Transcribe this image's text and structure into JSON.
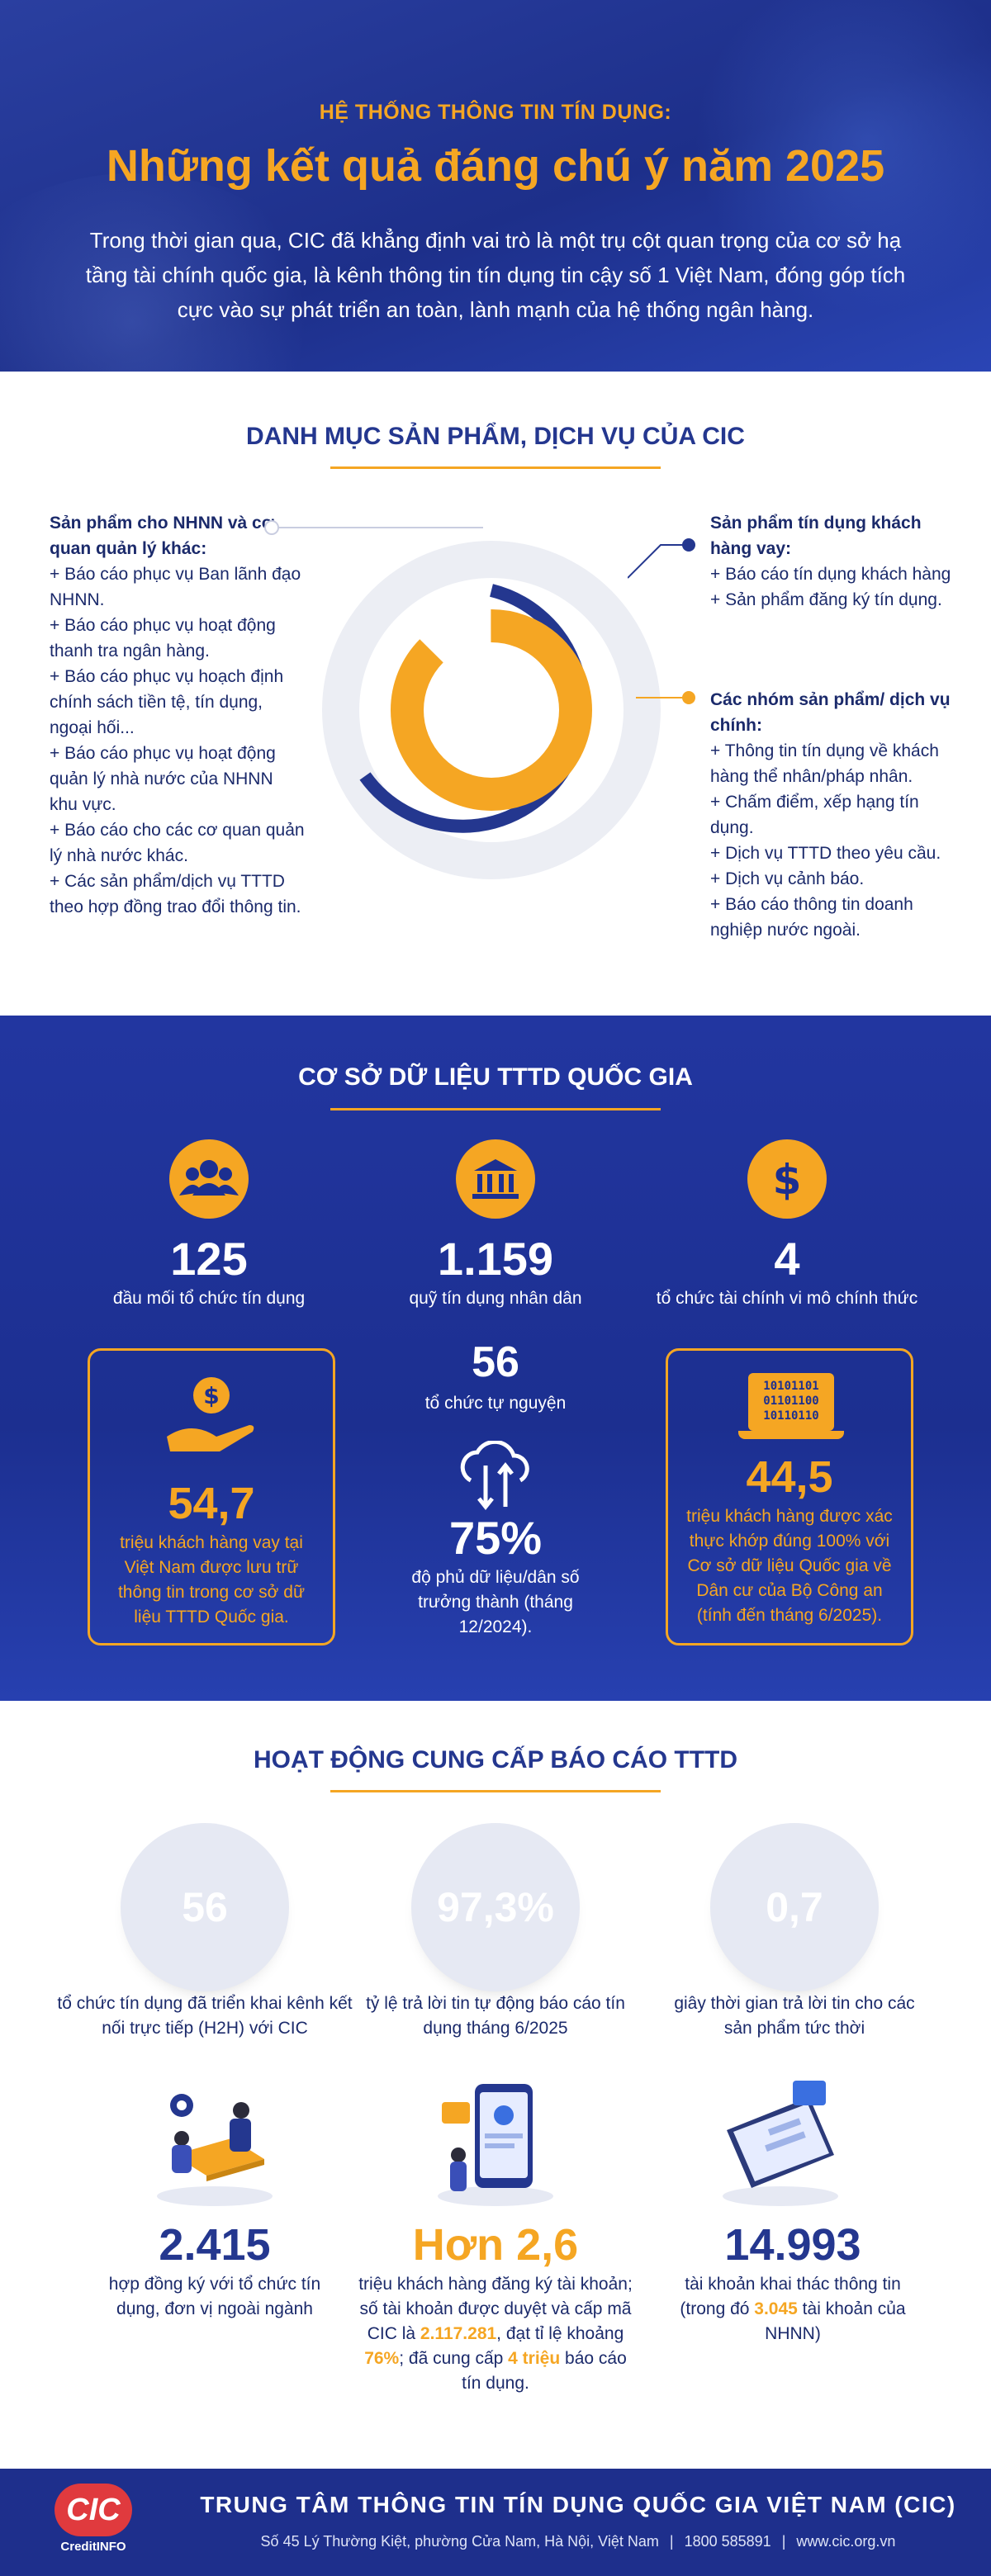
{
  "header": {
    "subtitle": "HỆ THỐNG THÔNG TIN TÍN DỤNG:",
    "title": "Những kết quả đáng chú ý năm 2025",
    "description": "Trong thời gian qua, CIC đã khẳng định vai trò là một trụ cột quan trọng của cơ sở hạ tầng tài chính quốc gia, là kênh thông tin tín dụng tin cậy số 1 Việt Nam, đóng góp tích cực vào sự phát triển an toàn, lành mạnh của hệ thống ngân hàng."
  },
  "products": {
    "title": "DANH MỤC SẢN PHẨM, DỊCH VỤ CỦA CIC",
    "left_heading": "Sản phẩm cho NHNN và cơ quan quản lý khác:",
    "left_items": [
      "+ Báo cáo phục vụ Ban lãnh đạo NHNN.",
      "+ Báo cáo phục vụ hoạt động thanh tra ngân hàng.",
      "+ Báo cáo phục vụ hoạch định chính sách tiền tệ, tín dụng, ngoại hối...",
      "+ Báo cáo phục vụ hoạt động quản lý nhà nước của NHNN khu vực.",
      "+ Báo cáo cho các cơ quan quản lý nhà nước khác.",
      "+ Các sản phẩm/dịch vụ TTTD theo hợp đồng trao đổi thông tin."
    ],
    "right_top_heading": "Sản phẩm tín dụng khách hàng vay:",
    "right_top_items": [
      "+ Báo cáo tín dụng khách hàng",
      "+ Sản phẩm đăng ký tín dụng."
    ],
    "right_bottom_heading": "Các nhóm sản phẩm/ dịch vụ chính:",
    "right_bottom_items": [
      "+ Thông tin tín dụng về khách hàng thể nhân/pháp nhân.",
      "+ Chấm điểm, xếp hạng tín dụng.",
      "+ Dịch vụ TTTD theo yêu cầu.",
      "+ Dịch vụ cảnh báo.",
      "+ Báo cáo thông tin doanh nghiệp nước ngoài."
    ]
  },
  "database": {
    "title": "CƠ SỞ DỮ LIỆU TTTD QUỐC GIA",
    "stat1": {
      "value": "125",
      "label": "đầu mối tổ chức tín dụng",
      "icon": "people-icon"
    },
    "stat2": {
      "value": "1.159",
      "label": "quỹ tín dụng nhân dân",
      "icon": "bank-icon"
    },
    "stat3": {
      "value": "4",
      "label": "tổ chức tài chính vi mô chính thức",
      "icon": "dollar-icon"
    },
    "stat4": {
      "value": "56",
      "label": "tổ chức tự nguyện"
    },
    "stat5": {
      "value": "54,7",
      "label": "triệu khách hàng vay tại Việt Nam được lưu trữ thông tin trong cơ sở dữ liệu TTTD Quốc gia.",
      "icon": "hand-coin-icon"
    },
    "stat6": {
      "value": "75%",
      "label": "độ phủ dữ liệu/dân số trưởng thành (tháng 12/2024).",
      "icon": "cloud-transfer-icon"
    },
    "stat7": {
      "value": "44,5",
      "label": "triệu khách hàng được xác thực khớp đúng 100% với Cơ sở dữ liệu Quốc gia về Dân cư của Bộ Công an (tính đến tháng 6/2025).",
      "icon": "binary-laptop-icon",
      "binary": [
        "10101101",
        "01101100",
        "10110110"
      ]
    }
  },
  "reports": {
    "title": "HOẠT ĐỘNG CUNG CẤP BÁO CÁO TTTD",
    "circle1": {
      "value": "56",
      "label": "tổ chức tín dụng đã triển khai kênh kết nối trực tiếp (H2H) với CIC",
      "color": "#24378f"
    },
    "circle2": {
      "value": "97,3%",
      "label": "tỷ lệ trả lời tin tự động báo cáo tín dụng tháng 6/2025",
      "color": "#f5a623"
    },
    "circle3": {
      "value": "0,7",
      "label": "giây thời gian trả lời tin cho các sản phẩm tức thời",
      "color": "#24378f"
    },
    "item1": {
      "value": "2.415",
      "label": "hợp đồng ký với tổ chức tín dụng, đơn vị ngoài ngành"
    },
    "item2": {
      "value": "Hơn 2,6",
      "label_a": "triệu khách hàng đăng ký tài khoản; số tài khoản được duyệt và cấp mã CIC là ",
      "hl1": "2.117.281",
      "label_b": ", đạt tỉ lệ khoảng ",
      "hl2": "76%",
      "label_c": "; đã cung cấp ",
      "hl3": "4 triệu",
      "label_d": " báo cáo tín dụng."
    },
    "item3": {
      "value": "14.993",
      "label_a": "tài khoản khai thác thông tin (trong đó ",
      "hl": "3.045",
      "label_b": " tài khoản của NHNN)"
    }
  },
  "footer": {
    "logo_text": "CIC",
    "logo_sub": "CreditINFO",
    "org": "TRUNG TÂM THÔNG TIN TÍN DỤNG QUỐC GIA VIỆT NAM (CIC)",
    "address": "Số 45 Lý Thường Kiệt, phường Cửa Nam, Hà Nội, Việt Nam",
    "phone": "1800 585891",
    "website": "www.cic.org.vn"
  },
  "colors": {
    "navy": "#1b2a6b",
    "blue": "#24378f",
    "orange": "#f5a623"
  }
}
